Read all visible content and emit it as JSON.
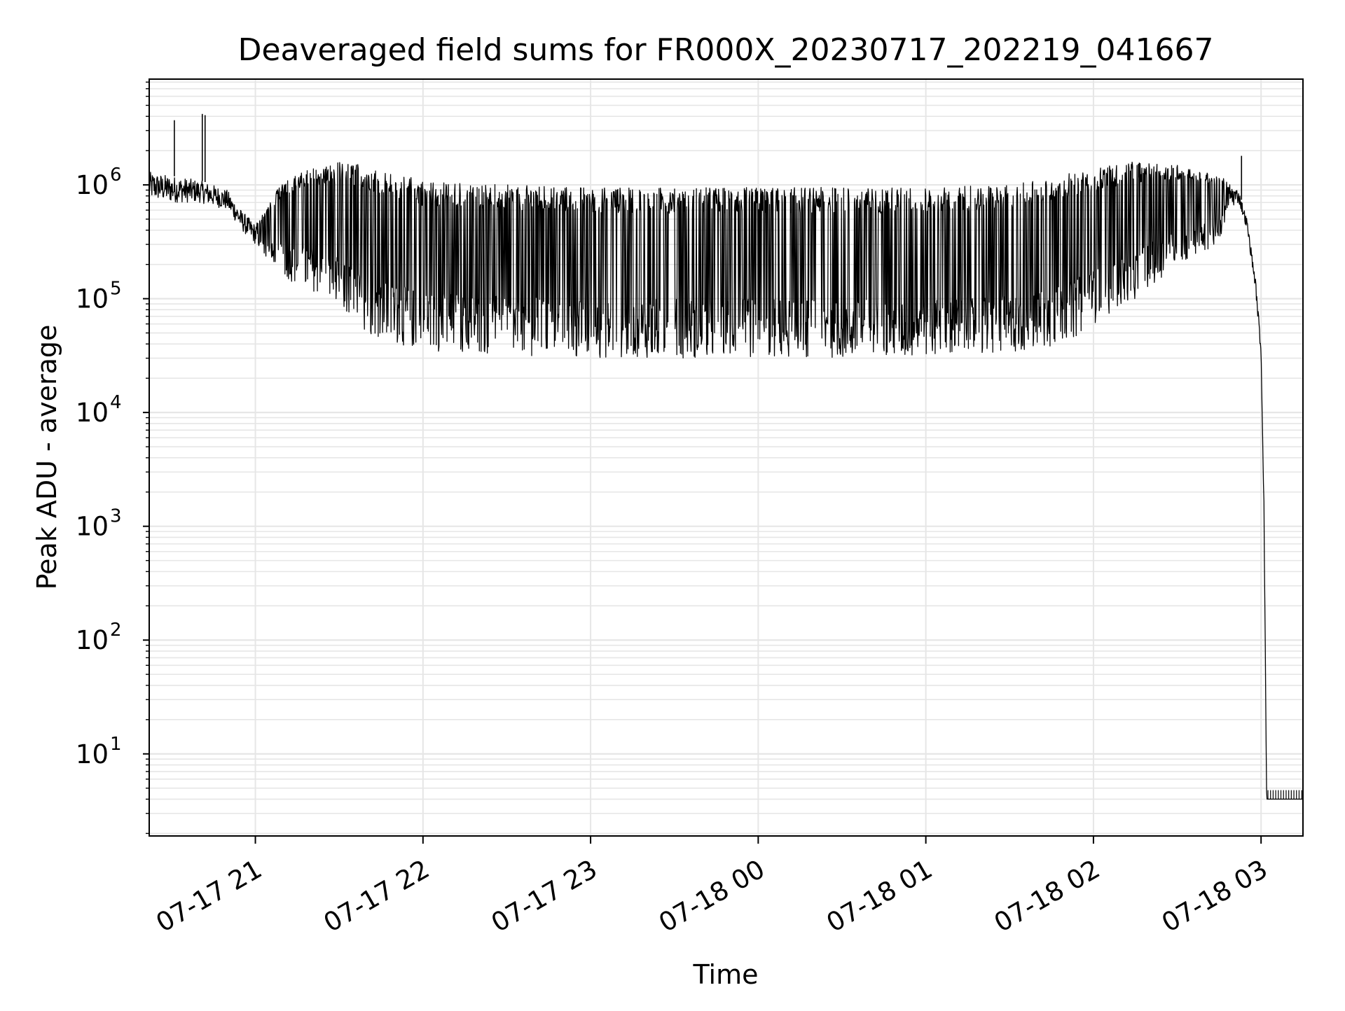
{
  "chart_data": {
    "type": "line",
    "title": "Deaveraged field sums for FR000X_20230717_202219_041667",
    "xlabel": "Time",
    "ylabel": "Peak ADU - average",
    "y_scale": "log",
    "xlim": [
      "07-17 20:22",
      "07-18 03:15"
    ],
    "ylim": [
      1.9,
      8500000
    ],
    "x_ticks": [
      "07-17 21",
      "07-17 22",
      "07-17 23",
      "07-18 00",
      "07-18 01",
      "07-18 02",
      "07-18 03"
    ],
    "x_tick_rotation_deg": 30,
    "y_ticks": [
      {
        "base": "10",
        "exp": "1",
        "value": 10
      },
      {
        "base": "10",
        "exp": "2",
        "value": 100
      },
      {
        "base": "10",
        "exp": "3",
        "value": 1000
      },
      {
        "base": "10",
        "exp": "4",
        "value": 10000
      },
      {
        "base": "10",
        "exp": "5",
        "value": 100000
      },
      {
        "base": "10",
        "exp": "6",
        "value": 1000000
      }
    ],
    "grid": true,
    "line_color": "#000000",
    "grid_color": "#e6e6e6",
    "series": [
      {
        "style": "oscillating",
        "note_values": "upper envelope and lower envelope per time",
        "x": [
          "07-17 20:22",
          "07-17 20:30",
          "07-17 20:40",
          "07-17 20:45",
          "07-17 20:50",
          "07-17 20:55",
          "07-17 21:00",
          "07-17 21:05",
          "07-17 21:10",
          "07-17 21:20",
          "07-17 21:30",
          "07-17 21:40",
          "07-17 21:50",
          "07-17 22:00",
          "07-17 22:30",
          "07-17 23:00",
          "07-17 23:30",
          "07-18 00:00",
          "07-18 00:30",
          "07-18 01:00",
          "07-18 01:30",
          "07-18 01:50",
          "07-18 02:00",
          "07-18 02:15",
          "07-18 02:30",
          "07-18 02:45",
          "07-18 02:48",
          "07-18 02:52",
          "07-18 02:55",
          "07-18 02:58",
          "07-18 03:00",
          "07-18 03:01",
          "07-18 03:02",
          "07-18 03:15"
        ],
        "upper": [
          1300000,
          1200000,
          1100000,
          1000000,
          900000,
          600000,
          450000,
          700000,
          1100000,
          1400000,
          1600000,
          1500000,
          1300000,
          1100000,
          1000000,
          950000,
          950000,
          950000,
          950000,
          950000,
          1000000,
          1300000,
          1400000,
          1600000,
          1500000,
          1200000,
          1100000,
          900000,
          500000,
          150000,
          40000,
          2000,
          4,
          4
        ],
        "lower": [
          750000,
          700000,
          700000,
          650000,
          600000,
          400000,
          300000,
          200000,
          150000,
          120000,
          80000,
          50000,
          40000,
          35000,
          32000,
          30000,
          30000,
          30000,
          30000,
          30000,
          32000,
          40000,
          60000,
          100000,
          200000,
          300000,
          600000,
          700000,
          400000,
          120000,
          30000,
          1500,
          4,
          4
        ]
      }
    ],
    "spikes": [
      {
        "x": "07-17 20:31",
        "y": 3700000
      },
      {
        "x": "07-17 20:41",
        "y": 4200000
      },
      {
        "x": "07-17 20:42",
        "y": 4100000
      },
      {
        "x": "07-18 02:53",
        "y": 1800000
      }
    ]
  }
}
